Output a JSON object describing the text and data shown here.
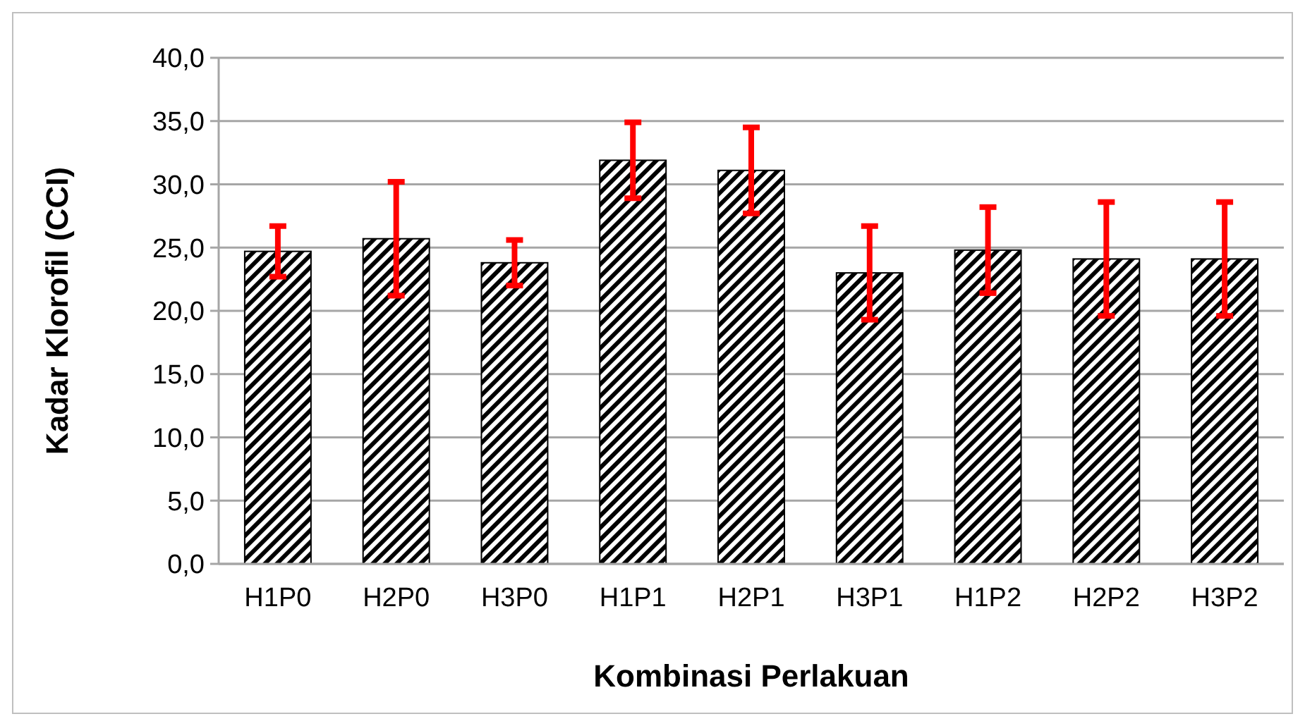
{
  "chart_data": {
    "type": "bar",
    "xlabel": "Kombinasi Perlakuan",
    "ylabel": "Kadar Klorofil (CCI)",
    "categories": [
      "H1P0",
      "H2P0",
      "H3P0",
      "H1P1",
      "H2P1",
      "H3P1",
      "H1P2",
      "H2P2",
      "H3P2"
    ],
    "series": [
      {
        "color": "#000000",
        "values": [
          24.7,
          25.7,
          23.8,
          31.9,
          31.1,
          23.0,
          24.8,
          24.1,
          24.1
        ],
        "errors": [
          2.0,
          4.5,
          1.8,
          3.0,
          3.4,
          3.7,
          3.4,
          4.5,
          4.5
        ]
      }
    ],
    "ylim": [
      0,
      40
    ],
    "yticks": [
      {
        "value": 0,
        "label": "0,0"
      },
      {
        "value": 5,
        "label": "5,0"
      },
      {
        "value": 10,
        "label": "10,0"
      },
      {
        "value": 15,
        "label": "15,0"
      },
      {
        "value": 20,
        "label": "20,0"
      },
      {
        "value": 25,
        "label": "25,0"
      },
      {
        "value": 30,
        "label": "30,0"
      },
      {
        "value": 35,
        "label": "35,0"
      },
      {
        "value": 40,
        "label": "40,0"
      }
    ],
    "grid": "y"
  }
}
